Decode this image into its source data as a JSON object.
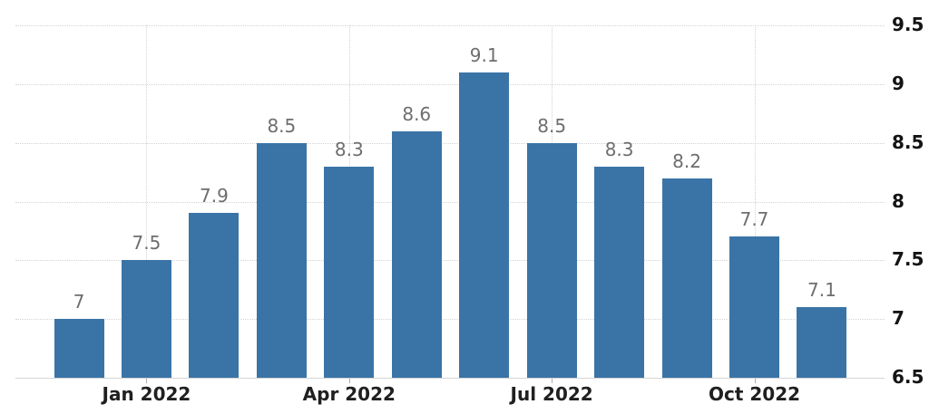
{
  "chart_data": {
    "type": "bar",
    "title": "",
    "xlabel": "",
    "ylabel": "",
    "legend": "none",
    "grid": "dotted horizontal gridlines at each y tick; dotted vertical gridlines at quarter ticks",
    "values": [
      7,
      7.5,
      7.9,
      8.5,
      8.3,
      8.6,
      9.1,
      8.5,
      8.3,
      8.2,
      7.7,
      7.1
    ],
    "bar_labels": [
      "7",
      "7.5",
      "7.9",
      "8.5",
      "8.3",
      "8.6",
      "9.1",
      "8.5",
      "8.3",
      "8.2",
      "7.7",
      "7.1"
    ],
    "x_ticks": [
      {
        "label": "Jan 2022",
        "bar_index": 1
      },
      {
        "label": "Apr 2022",
        "bar_index": 4
      },
      {
        "label": "Jul 2022",
        "bar_index": 7
      },
      {
        "label": "Oct 2022",
        "bar_index": 10
      }
    ],
    "y_ticks": [
      "9.5",
      "9",
      "8.5",
      "8",
      "7.5",
      "7",
      "6.5"
    ],
    "y_tick_values": [
      9.5,
      9,
      8.5,
      8,
      7.5,
      7,
      6.5
    ],
    "ylim": [
      6.5,
      9.5
    ],
    "colors": {
      "bar": "#3a74a6",
      "grid": "#d2d2d2",
      "baseline": "#d4d4d4",
      "tick_mark": "#ababab",
      "value_label": "#6e6e6e",
      "x_axis_label": "#202020",
      "y_axis_label": "#141414",
      "background": "#ffffff"
    }
  }
}
